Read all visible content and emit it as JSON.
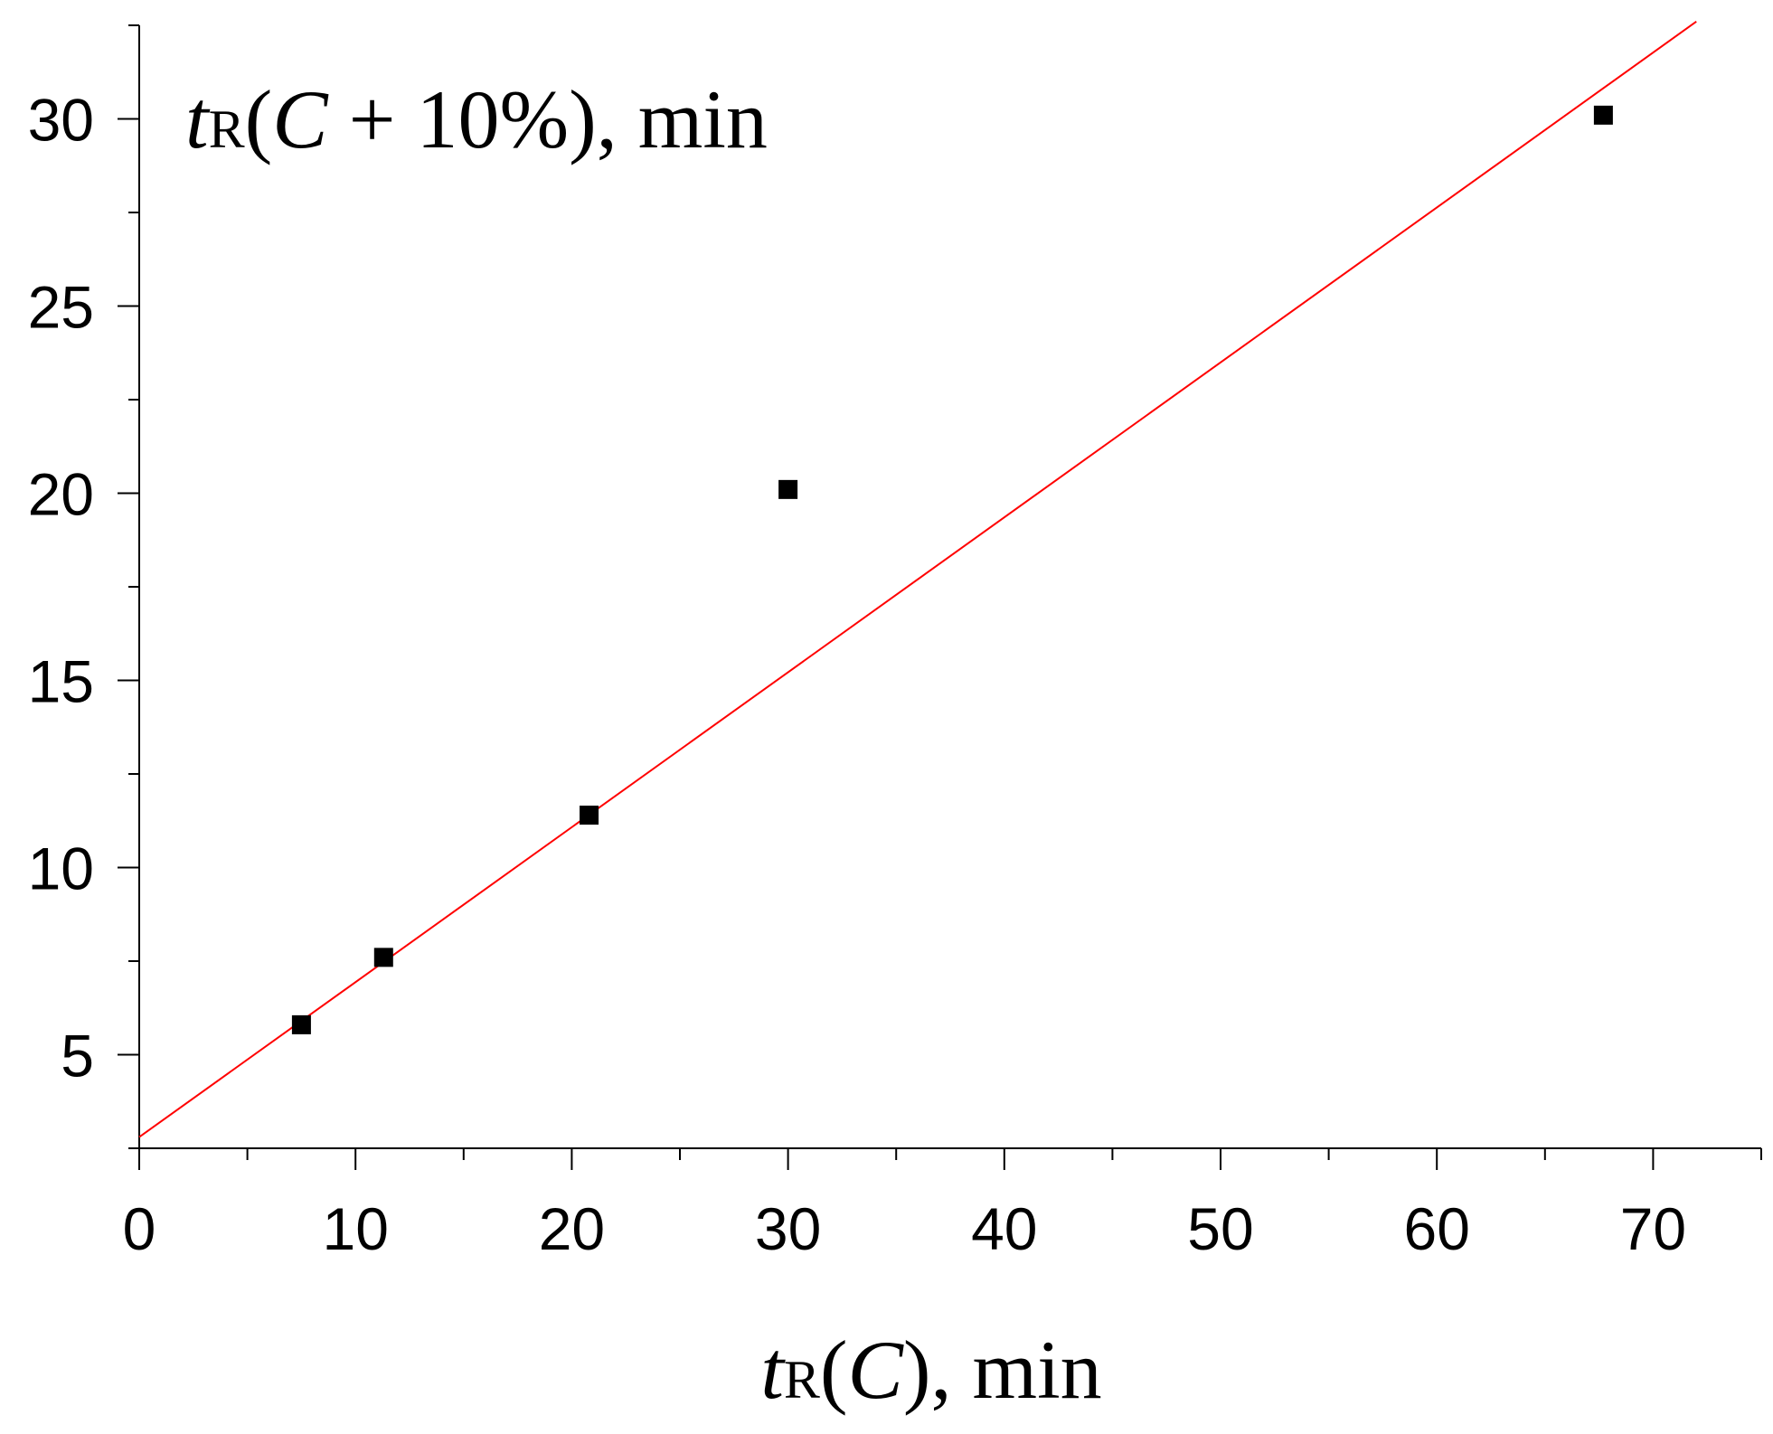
{
  "chart_data": {
    "type": "scatter",
    "title": "",
    "xlabel": {
      "t": "t",
      "sub": "R",
      "rest": "(",
      "ital": "C",
      "tail": "), min"
    },
    "ylabel": {
      "t": "t",
      "sub": "R",
      "rest": "(",
      "ital": "C",
      "tail": " + 10%), min"
    },
    "xlim": [
      0,
      75
    ],
    "ylim": [
      2.5,
      32.5
    ],
    "x_ticks": [
      0,
      10,
      20,
      30,
      40,
      50,
      60,
      70
    ],
    "x_minor_ticks": [
      5,
      15,
      25,
      35,
      45,
      55,
      65,
      75
    ],
    "y_ticks": [
      5,
      10,
      15,
      20,
      25,
      30
    ],
    "y_minor_ticks": [
      2.5,
      7.5,
      12.5,
      17.5,
      22.5,
      27.5,
      32.5
    ],
    "grid": false,
    "legend": "none",
    "points": [
      {
        "x": 7.5,
        "y": 5.8
      },
      {
        "x": 11.3,
        "y": 7.6
      },
      {
        "x": 20.8,
        "y": 11.4
      },
      {
        "x": 30.0,
        "y": 20.1
      },
      {
        "x": 67.7,
        "y": 30.1
      }
    ],
    "fit_line": {
      "x": [
        0,
        72
      ],
      "y": [
        2.8,
        32.6
      ],
      "color": "#ff0000"
    },
    "marker_color": "#000000",
    "marker_shape": "square"
  }
}
